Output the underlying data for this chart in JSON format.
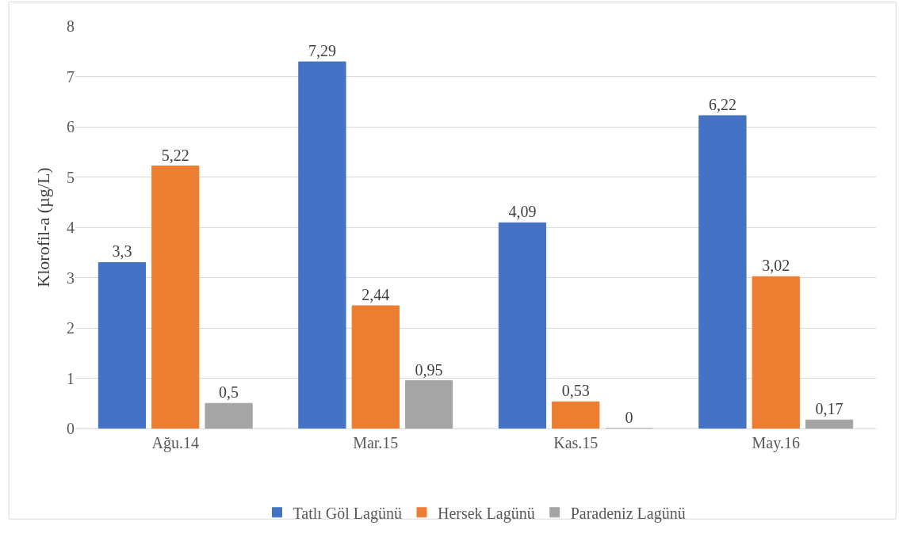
{
  "chart_data": {
    "type": "bar",
    "ylabel": "Klorofil-a (µg/L)",
    "categories": [
      "Ağu.14",
      "Mar.15",
      "Kas.15",
      "May.16"
    ],
    "series": [
      {
        "name": "Tatlı Göl Lagünü",
        "color": "#4472c4",
        "values": [
          3.3,
          7.29,
          4.09,
          6.22
        ],
        "value_labels": [
          "3,3",
          "7,29",
          "4,09",
          "6,22"
        ]
      },
      {
        "name": "Hersek Lagünü",
        "color": "#ed7d31",
        "values": [
          5.22,
          2.44,
          0.53,
          3.02
        ],
        "value_labels": [
          "5,22",
          "2,44",
          "0,53",
          "3,02"
        ]
      },
      {
        "name": "Paradeniz Lagünü",
        "color": "#a5a5a5",
        "values": [
          0.5,
          0.95,
          0,
          0.17
        ],
        "value_labels": [
          "0,5",
          "0,95",
          "0",
          "0,17"
        ]
      }
    ],
    "ylim": [
      0,
      8
    ],
    "yticks": [
      0,
      1,
      2,
      3,
      4,
      5,
      6,
      7,
      8
    ],
    "grid": "y",
    "legend": "bottom"
  }
}
